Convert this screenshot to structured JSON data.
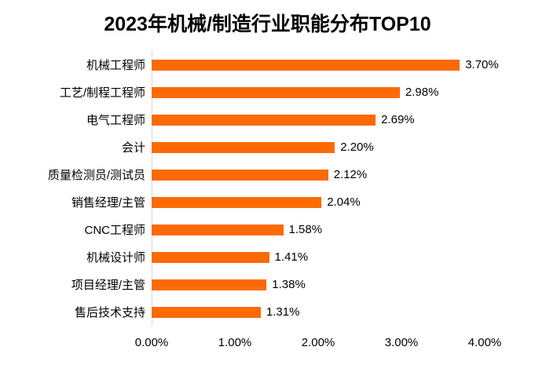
{
  "title": "2023年机械/制造行业职能分布TOP10",
  "colors": {
    "bar": "#fc6a06",
    "axis_line": "#d9d9d9",
    "text": "#000000",
    "background": "#ffffff"
  },
  "chart_data": {
    "type": "bar",
    "orientation": "horizontal",
    "title": "2023年机械/制造行业职能分布TOP10",
    "categories": [
      "机械工程师",
      "工艺/制程工程师",
      "电气工程师",
      "会计",
      "质量检测员/测试员",
      "销售经理/主管",
      "CNC工程师",
      "机械设计师",
      "项目经理/主管",
      "售后技术支持"
    ],
    "values": [
      3.7,
      2.98,
      2.69,
      2.2,
      2.12,
      2.04,
      1.58,
      1.41,
      1.38,
      1.31
    ],
    "value_labels": [
      "3.70%",
      "2.98%",
      "2.69%",
      "2.20%",
      "2.12%",
      "2.04%",
      "1.58%",
      "1.41%",
      "1.38%",
      "1.31%"
    ],
    "xlabel": "",
    "ylabel": "",
    "x_axis": {
      "min": 0,
      "max": 4,
      "tick_labels": [
        "0.00%",
        "1.00%",
        "2.00%",
        "3.00%",
        "4.00%"
      ]
    },
    "grid": false,
    "legend": false,
    "data_labels": true
  }
}
